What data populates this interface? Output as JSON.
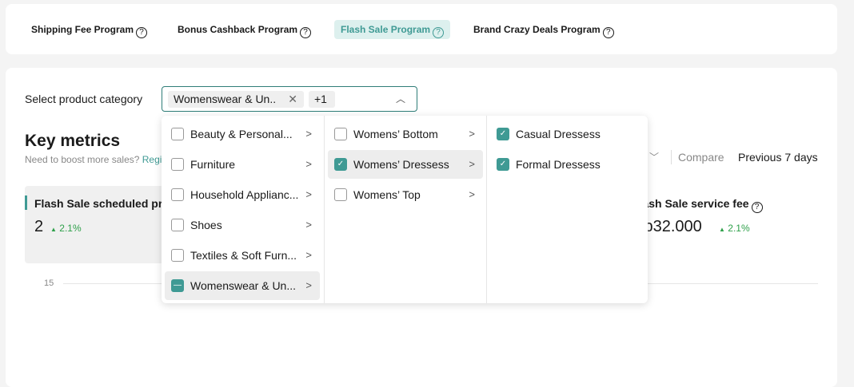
{
  "tabs": [
    {
      "label": "Shipping Fee Program",
      "active": false
    },
    {
      "label": "Bonus Cashback Program",
      "active": false
    },
    {
      "label": "Flash Sale Program",
      "active": true
    },
    {
      "label": "Brand Crazy Deals Program",
      "active": false
    }
  ],
  "filter": {
    "label": "Select product category",
    "chip": "Womenswear & Un..",
    "more": "+1"
  },
  "dropdown": {
    "col1": [
      "Beauty & Personal...",
      "Furniture",
      "Household Applianc...",
      "Shoes",
      "Textiles & Soft Furn...",
      "Womenswear & Un..."
    ],
    "col2": [
      "Womens’ Bottom",
      "Womens’ Dressess",
      "Womens’ Top"
    ],
    "col3": [
      "Casual Dressess",
      "Formal Dressess"
    ]
  },
  "metrics": {
    "title": "Key metrics",
    "subtitle": "Need to boost more sales?",
    "link": "Register now",
    "compare": "Compare",
    "period": "Previous 7 days",
    "cards": [
      {
        "label": "Flash Sale scheduled products",
        "value": "2",
        "change": "2.1%"
      },
      {
        "label": "Flash Sale service fee",
        "value": "Rp32.000",
        "change": "2.1%"
      }
    ],
    "chart_tick": "15"
  },
  "colors": {
    "accent": "#3f9a94",
    "positive": "#2ea04a"
  }
}
